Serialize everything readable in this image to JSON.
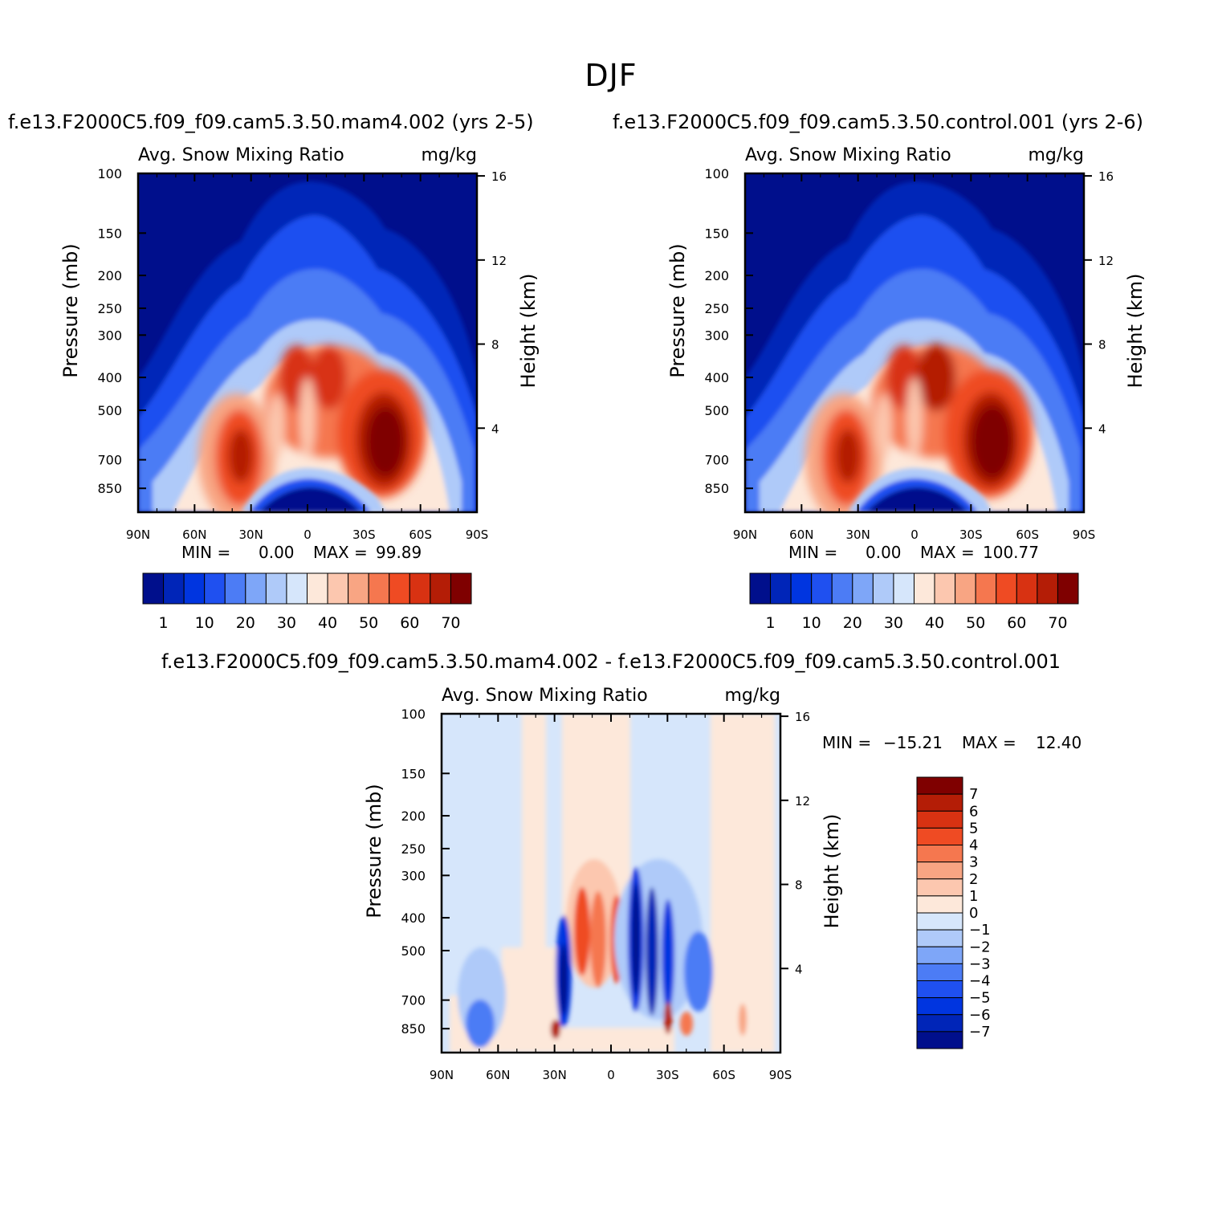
{
  "title": "DJF",
  "panels": {
    "left": {
      "case_title": "f.e13.F2000C5.f09_f09.cam5.3.50.mam4.002 (yrs 2-5)",
      "var_label": "Avg. Snow Mixing Ratio",
      "units": "mg/kg",
      "ylabel_left": "Pressure (mb)",
      "ylabel_right": "Height (km)",
      "min_label": "MIN =",
      "min_value": "0.00",
      "max_label": "MAX =",
      "max_value": "99.89"
    },
    "right": {
      "case_title": "f.e13.F2000C5.f09_f09.cam5.3.50.control.001 (yrs 2-6)",
      "var_label": "Avg. Snow Mixing Ratio",
      "units": "mg/kg",
      "ylabel_left": "Pressure (mb)",
      "ylabel_right": "Height (km)",
      "min_label": "MIN =",
      "min_value": "0.00",
      "max_label": "MAX =",
      "max_value": "100.77"
    },
    "diff": {
      "case_title": "f.e13.F2000C5.f09_f09.cam5.3.50.mam4.002 - f.e13.F2000C5.f09_f09.cam5.3.50.control.001",
      "var_label": "Avg. Snow Mixing Ratio",
      "units": "mg/kg",
      "ylabel_left": "Pressure (mb)",
      "ylabel_right": "Height (km)",
      "min_label": "MIN =",
      "min_value": "-15.21",
      "max_label": "MAX =",
      "max_value": "12.40"
    }
  },
  "chart_data": [
    {
      "type": "heatmap",
      "name": "mam4.002",
      "x_ticks": [
        "90N",
        "60N",
        "30N",
        "0",
        "30S",
        "60S",
        "90S"
      ],
      "y_ticks_pressure": [
        "100",
        "150",
        "200",
        "250",
        "300",
        "400",
        "500",
        "700",
        "850"
      ],
      "y_ticks_height": [
        "16",
        "12",
        "8",
        "4"
      ],
      "colorbar_levels": [
        "1",
        "10",
        "20",
        "30",
        "40",
        "50",
        "60",
        "70"
      ],
      "colorbar_colors": [
        "#000f8c",
        "#0025b8",
        "#0035e0",
        "#1f50f0",
        "#4c7cf5",
        "#7ea6f8",
        "#afcaf9",
        "#d6e6fb",
        "#fde8da",
        "#fcc7af",
        "#f8a583",
        "#f5774f",
        "#ef4b23",
        "#d83212",
        "#b41d06",
        "#7f0000"
      ],
      "ylim_mb": [
        100,
        1000
      ],
      "xlim_deg": [
        90,
        -90
      ],
      "features": {
        "max_value": 99.89,
        "peak_cores_lat": [
          -40,
          35
        ],
        "peak_core_mb": 600
      }
    },
    {
      "type": "heatmap",
      "name": "control.001",
      "x_ticks": [
        "90N",
        "60N",
        "30N",
        "0",
        "30S",
        "60S",
        "90S"
      ],
      "y_ticks_pressure": [
        "100",
        "150",
        "200",
        "250",
        "300",
        "400",
        "500",
        "700",
        "850"
      ],
      "y_ticks_height": [
        "16",
        "12",
        "8",
        "4"
      ],
      "colorbar_levels": [
        "1",
        "10",
        "20",
        "30",
        "40",
        "50",
        "60",
        "70"
      ],
      "colorbar_colors": [
        "#000f8c",
        "#0025b8",
        "#0035e0",
        "#1f50f0",
        "#4c7cf5",
        "#7ea6f8",
        "#afcaf9",
        "#d6e6fb",
        "#fde8da",
        "#fcc7af",
        "#f8a583",
        "#f5774f",
        "#ef4b23",
        "#d83212",
        "#b41d06",
        "#7f0000"
      ],
      "ylim_mb": [
        100,
        1000
      ],
      "xlim_deg": [
        90,
        -90
      ],
      "features": {
        "max_value": 100.77,
        "peak_cores_lat": [
          -40,
          35
        ],
        "peak_core_mb": 600
      }
    },
    {
      "type": "heatmap",
      "name": "difference",
      "x_ticks": [
        "90N",
        "60N",
        "30N",
        "0",
        "30S",
        "60S",
        "90S"
      ],
      "y_ticks_pressure": [
        "100",
        "150",
        "200",
        "250",
        "300",
        "400",
        "500",
        "700",
        "850"
      ],
      "y_ticks_height": [
        "16",
        "12",
        "8",
        "4"
      ],
      "colorbar_levels": [
        "7",
        "6",
        "5",
        "4",
        "3",
        "2",
        "1",
        "0",
        "-1",
        "-2",
        "-3",
        "-4",
        "-5",
        "-6",
        "-7"
      ],
      "colorbar_colors": [
        "#7f0000",
        "#b41d06",
        "#d83212",
        "#ef4b23",
        "#f5774f",
        "#f8a583",
        "#fcc7af",
        "#fde8da",
        "#d6e6fb",
        "#afcaf9",
        "#7ea6f8",
        "#4c7cf5",
        "#1f50f0",
        "#0035e0",
        "#0025b8",
        "#000f8c"
      ],
      "ylim_mb": [
        100,
        1000
      ],
      "xlim_deg": [
        90,
        -90
      ],
      "features": {
        "min_value": -15.21,
        "max_value": 12.4
      }
    }
  ]
}
